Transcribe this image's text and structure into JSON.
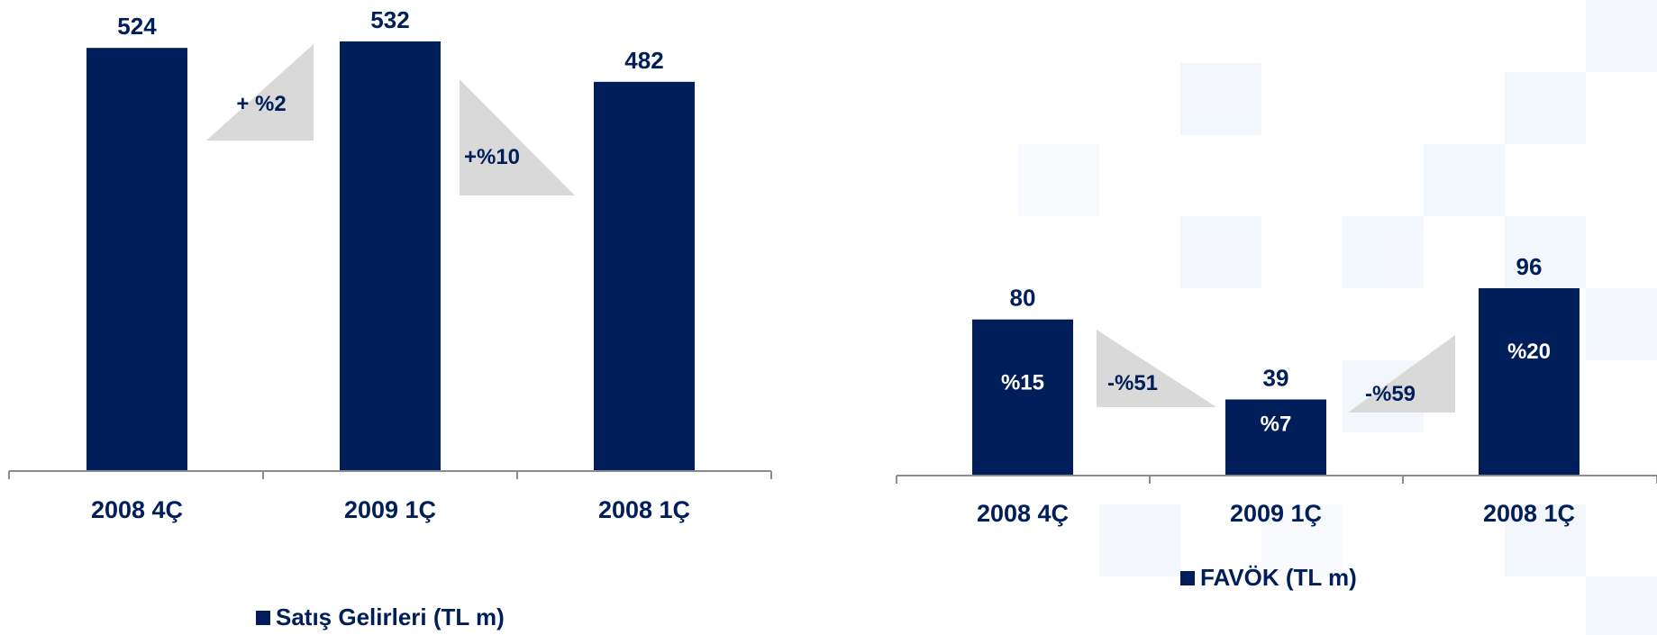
{
  "colors": {
    "bar": "#001E5A",
    "callout": "#D9D9D9",
    "axis": "#8C8C8C",
    "bar_label": "#001E5A",
    "inner_label": "#FFFFFF"
  },
  "chart_data": [
    {
      "type": "bar",
      "categories": [
        "2008 4Ç",
        "2009 1Ç",
        "2008 1Ç"
      ],
      "series": [
        {
          "name": "Satış Gelirleri (TL m)",
          "values": [
            524,
            532,
            482
          ]
        }
      ],
      "value_labels": [
        "524",
        "532",
        "482"
      ],
      "inner_labels": [],
      "change_callouts": [
        {
          "text": "+ %2",
          "between": [
            0,
            1
          ],
          "orientation": "rising"
        },
        {
          "text": "+%10",
          "between": [
            1,
            2
          ],
          "orientation": "falling"
        }
      ],
      "legend": {
        "label": "Satış Gelirleri (TL m)",
        "placement": "bottom"
      },
      "ylim": [
        0,
        532
      ],
      "grid": false
    },
    {
      "type": "bar",
      "categories": [
        "2008 4Ç",
        "2009 1Ç",
        "2008 1Ç"
      ],
      "series": [
        {
          "name": "FAVÖK (TL m)",
          "values": [
            80,
            39,
            96
          ]
        }
      ],
      "value_labels": [
        "80",
        "39",
        "96"
      ],
      "inner_labels": [
        "%15",
        "%7",
        "%20"
      ],
      "change_callouts": [
        {
          "text": "-%51",
          "between": [
            0,
            1
          ],
          "orientation": "falling"
        },
        {
          "text": "-%59",
          "between": [
            1,
            2
          ],
          "orientation": "rising"
        }
      ],
      "legend": {
        "label": "FAVÖK (TL m)",
        "placement": "bottom"
      },
      "ylim": [
        0,
        96
      ],
      "grid": false
    }
  ]
}
